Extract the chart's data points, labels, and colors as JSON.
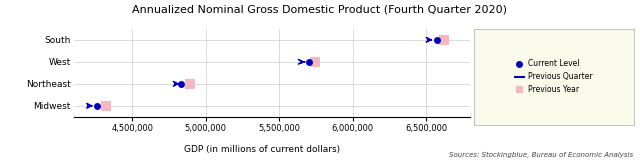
{
  "title": "Annualized Nominal Gross Domestic Product (Fourth Quarter 2020)",
  "xlabel": "GDP (in millions of current dollars)",
  "source_text": "Sources: Stockingblue, Bureau of Economic Analysis",
  "regions": [
    "Midwest",
    "Northeast",
    "West",
    "South"
  ],
  "current_level": [
    4260000,
    4830000,
    5700000,
    6570000
  ],
  "previous_quarter": [
    4200000,
    4790000,
    5650000,
    6510000
  ],
  "previous_year": [
    4320000,
    4890000,
    5740000,
    6620000
  ],
  "xlim": [
    4100000,
    6800000
  ],
  "xticks": [
    4500000,
    5000000,
    5500000,
    6000000,
    6500000
  ],
  "current_color": "#0000bb",
  "prev_year_color": "#f4b8c1",
  "legend_bg": "#fafaeb"
}
